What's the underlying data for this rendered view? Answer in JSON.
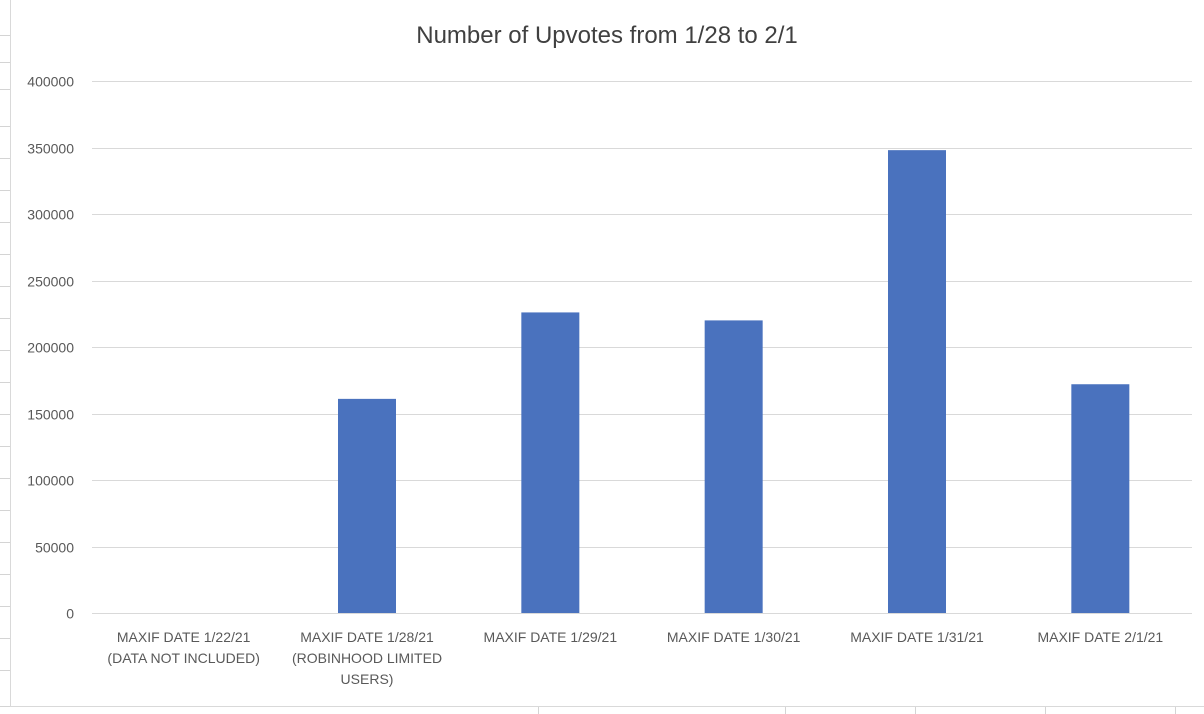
{
  "chart_data": {
    "type": "bar",
    "title": "Number of Upvotes from 1/28 to 2/1",
    "categories": [
      [
        "MAXIF DATE 1/22/21",
        "(DATA NOT INCLUDED)"
      ],
      [
        "MAXIF DATE 1/28/21",
        "(ROBINHOOD LIMITED",
        "USERS)"
      ],
      [
        "MAXIF DATE 1/29/21"
      ],
      [
        "MAXIF DATE 1/30/21"
      ],
      [
        "MAXIF DATE 1/31/21"
      ],
      [
        "MAXIF DATE 2/1/21"
      ]
    ],
    "values": [
      0,
      161000,
      226000,
      220000,
      348000,
      172000
    ],
    "ylim": [
      0,
      400000
    ],
    "y_ticks": [
      "0",
      "50000",
      "100000",
      "150000",
      "200000",
      "250000",
      "300000",
      "350000",
      "400000"
    ],
    "grid": true,
    "legend": "none",
    "colors": {
      "bar": "#4a72be",
      "grid": "#d9d9d9",
      "text": "#595959",
      "title": "#404040"
    }
  }
}
